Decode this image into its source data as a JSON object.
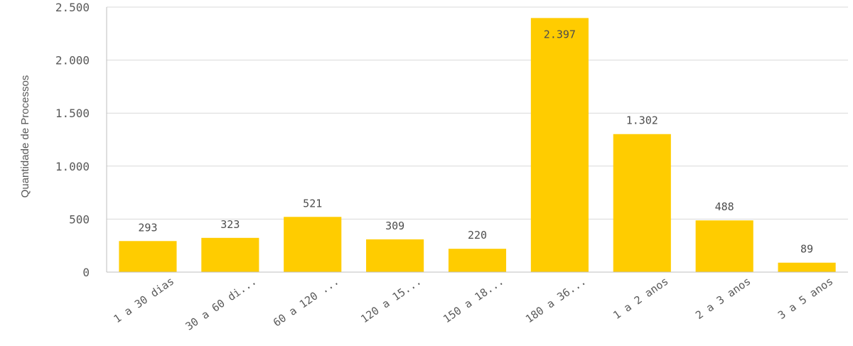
{
  "chart_data": {
    "type": "bar",
    "categories": [
      "1 a 30 dias",
      "30 a 60 di...",
      "60 a 120 ...",
      "120 a 15...",
      "150 a 18...",
      "180 a 36...",
      "1 a 2 anos",
      "2 a 3 anos",
      "3 a 5 anos"
    ],
    "values": [
      293,
      323,
      521,
      309,
      220,
      2397,
      1302,
      488,
      89
    ],
    "data_labels": [
      "293",
      "323",
      "521",
      "309",
      "220",
      "2.397",
      "1.302",
      "488",
      "89"
    ],
    "ylabel": "Quantidade de Processos",
    "xlabel": "",
    "ylim": [
      0,
      2500
    ],
    "yticks": [
      0,
      500,
      1000,
      1500,
      2000,
      2500
    ],
    "ytick_labels": [
      "0",
      "500",
      "1.000",
      "1.500",
      "2.000",
      "2.500"
    ],
    "grid": true,
    "bar_color": "#ffcc00",
    "grid_color": "#d9d9d9",
    "axis_color": "#bfbfbf",
    "text_color": "#595959"
  }
}
